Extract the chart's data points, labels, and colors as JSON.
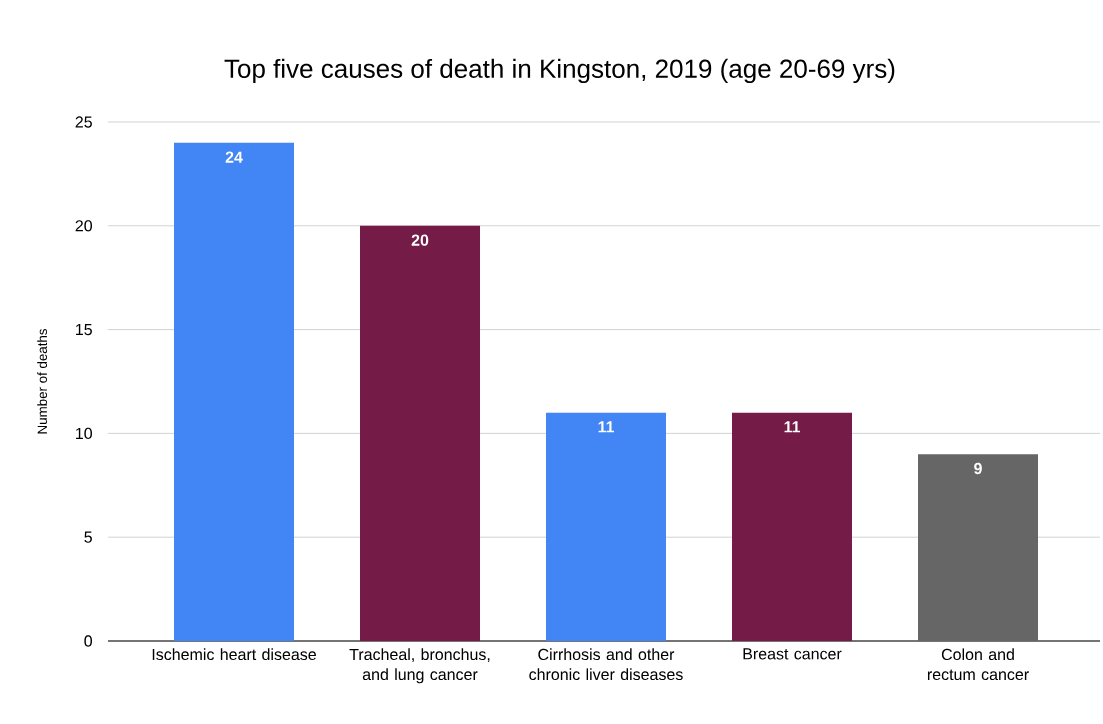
{
  "chart_data": {
    "type": "bar",
    "title": "Top five causes of death in Kingston, 2019 (age 20-69 yrs)",
    "ylabel": "Number of deaths",
    "categories": [
      "Ischemic heart disease",
      "Tracheal, bronchus, and lung cancer",
      "Cirrhosis and other chronic liver diseases",
      "Breast cancer",
      "Colon and rectum cancer"
    ],
    "values": [
      24,
      20,
      11,
      11,
      9
    ],
    "colors": [
      "#4285f4",
      "#741b47",
      "#4285f4",
      "#741b47",
      "#666666"
    ],
    "ylim": [
      0,
      25
    ],
    "yticks": [
      0,
      5,
      10,
      15,
      20,
      25
    ],
    "grid": "y",
    "data_labels": true
  }
}
